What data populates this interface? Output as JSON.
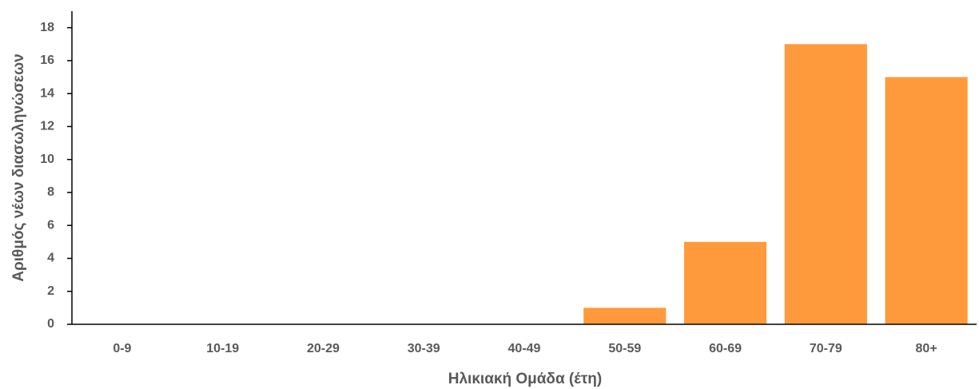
{
  "chart_data": {
    "type": "bar",
    "x_label": "Ηλικιακή Ομάδα (έτη)",
    "y_label": "Αριθμός νέων διασωληνώσεων",
    "categories": [
      "0-9",
      "10-19",
      "20-29",
      "30-39",
      "40-49",
      "50-59",
      "60-69",
      "70-79",
      "80+"
    ],
    "values": [
      0,
      0,
      0,
      0,
      0,
      1,
      5,
      17,
      15
    ],
    "color": "#ff9a3c",
    "ylim": [
      0,
      19
    ],
    "yticks": [
      0,
      2,
      4,
      6,
      8,
      10,
      12,
      14,
      16,
      18
    ],
    "grid": false
  }
}
